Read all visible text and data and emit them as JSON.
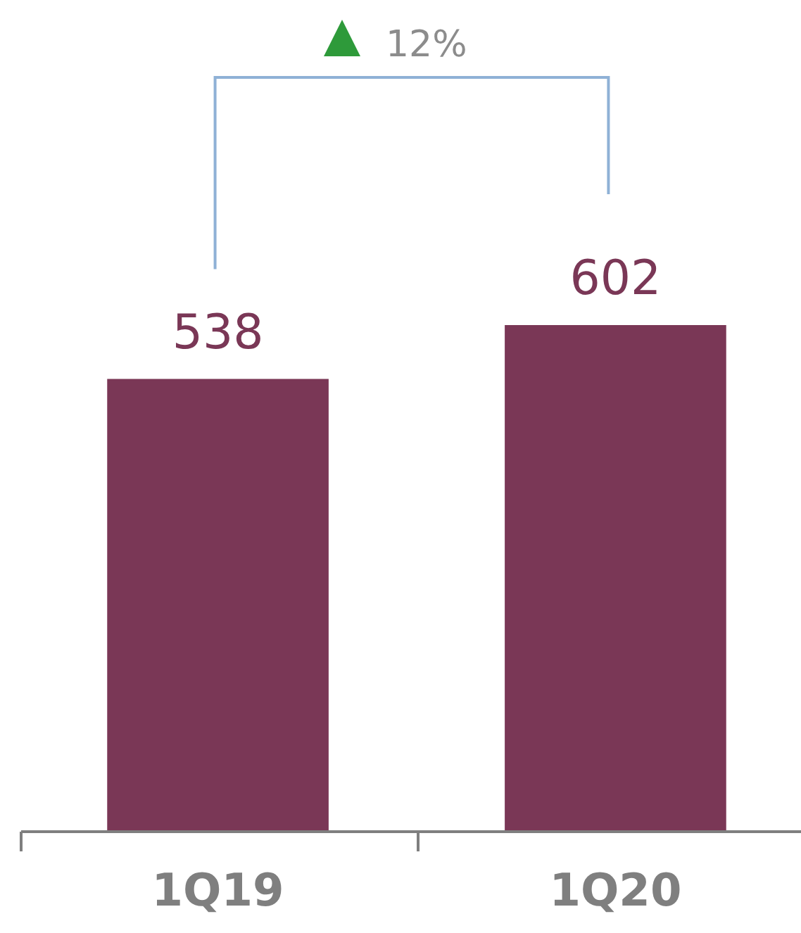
{
  "chart_data": {
    "type": "bar",
    "categories": [
      "1Q19",
      "1Q20"
    ],
    "values": [
      538,
      602
    ],
    "color": "#7a3756",
    "data_labels": true,
    "annotations": [
      "12%"
    ]
  }
}
